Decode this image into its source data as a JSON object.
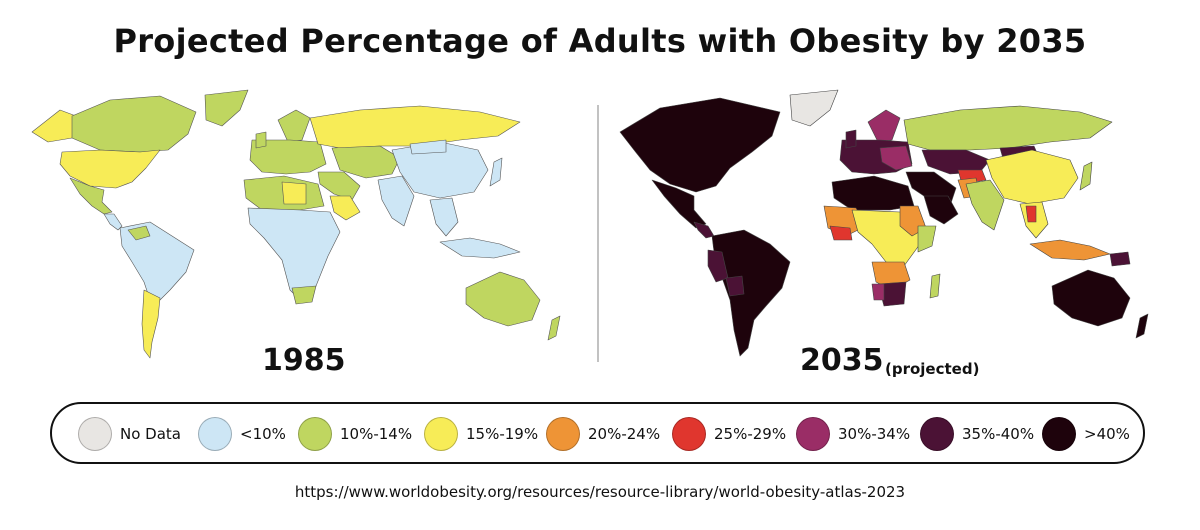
{
  "title": "Projected Percentage of Adults with Obesity by 2035",
  "maps": {
    "left": {
      "year": "1985",
      "note": ""
    },
    "right": {
      "year": "2035",
      "note": "(projected)"
    }
  },
  "legend": [
    {
      "label": "No Data",
      "color": "#e8e6e3"
    },
    {
      "label": "<10%",
      "color": "#cde6f5"
    },
    {
      "label": "10%-14%",
      "color": "#bfd660"
    },
    {
      "label": "15%-19%",
      "color": "#f7ec57"
    },
    {
      "label": "20%-24%",
      "color": "#ee9436"
    },
    {
      "label": "25%-29%",
      "color": "#e0362e"
    },
    {
      "label": "30%-34%",
      "color": "#9a2d66"
    },
    {
      "label": "35%-40%",
      "color": "#4b1235"
    },
    {
      "label": ">40%",
      "color": "#1e030c"
    }
  ],
  "source": "https://www.worldobesity.org/resources/resource-library/world-obesity-atlas-2023"
}
